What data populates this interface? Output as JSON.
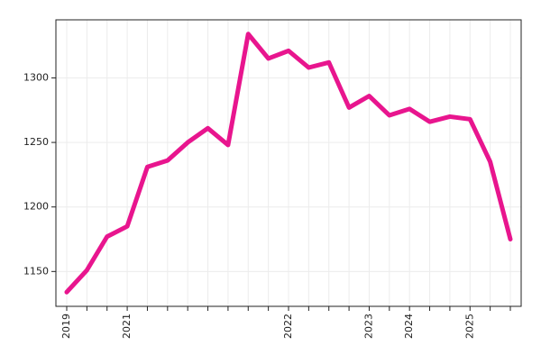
{
  "chart_data": {
    "type": "line",
    "categories": [
      "2019",
      null,
      null,
      "2021",
      null,
      null,
      null,
      null,
      null,
      null,
      null,
      "2022",
      null,
      null,
      null,
      "2023",
      null,
      "2024",
      null,
      null,
      "2025",
      null,
      null
    ],
    "series": [
      {
        "color": "#e8158e",
        "values": [
          1134,
          1151,
          1177,
          1185,
          1231,
          1236,
          1250,
          1261,
          1248,
          1334,
          1315,
          1321,
          1308,
          1312,
          1277,
          1286,
          1271,
          1276,
          1266,
          1270,
          1268,
          1235,
          1175
        ]
      }
    ],
    "ylim": [
      1123,
      1345
    ],
    "yticks": [
      1150,
      1200,
      1250,
      1300
    ],
    "grid": true
  }
}
